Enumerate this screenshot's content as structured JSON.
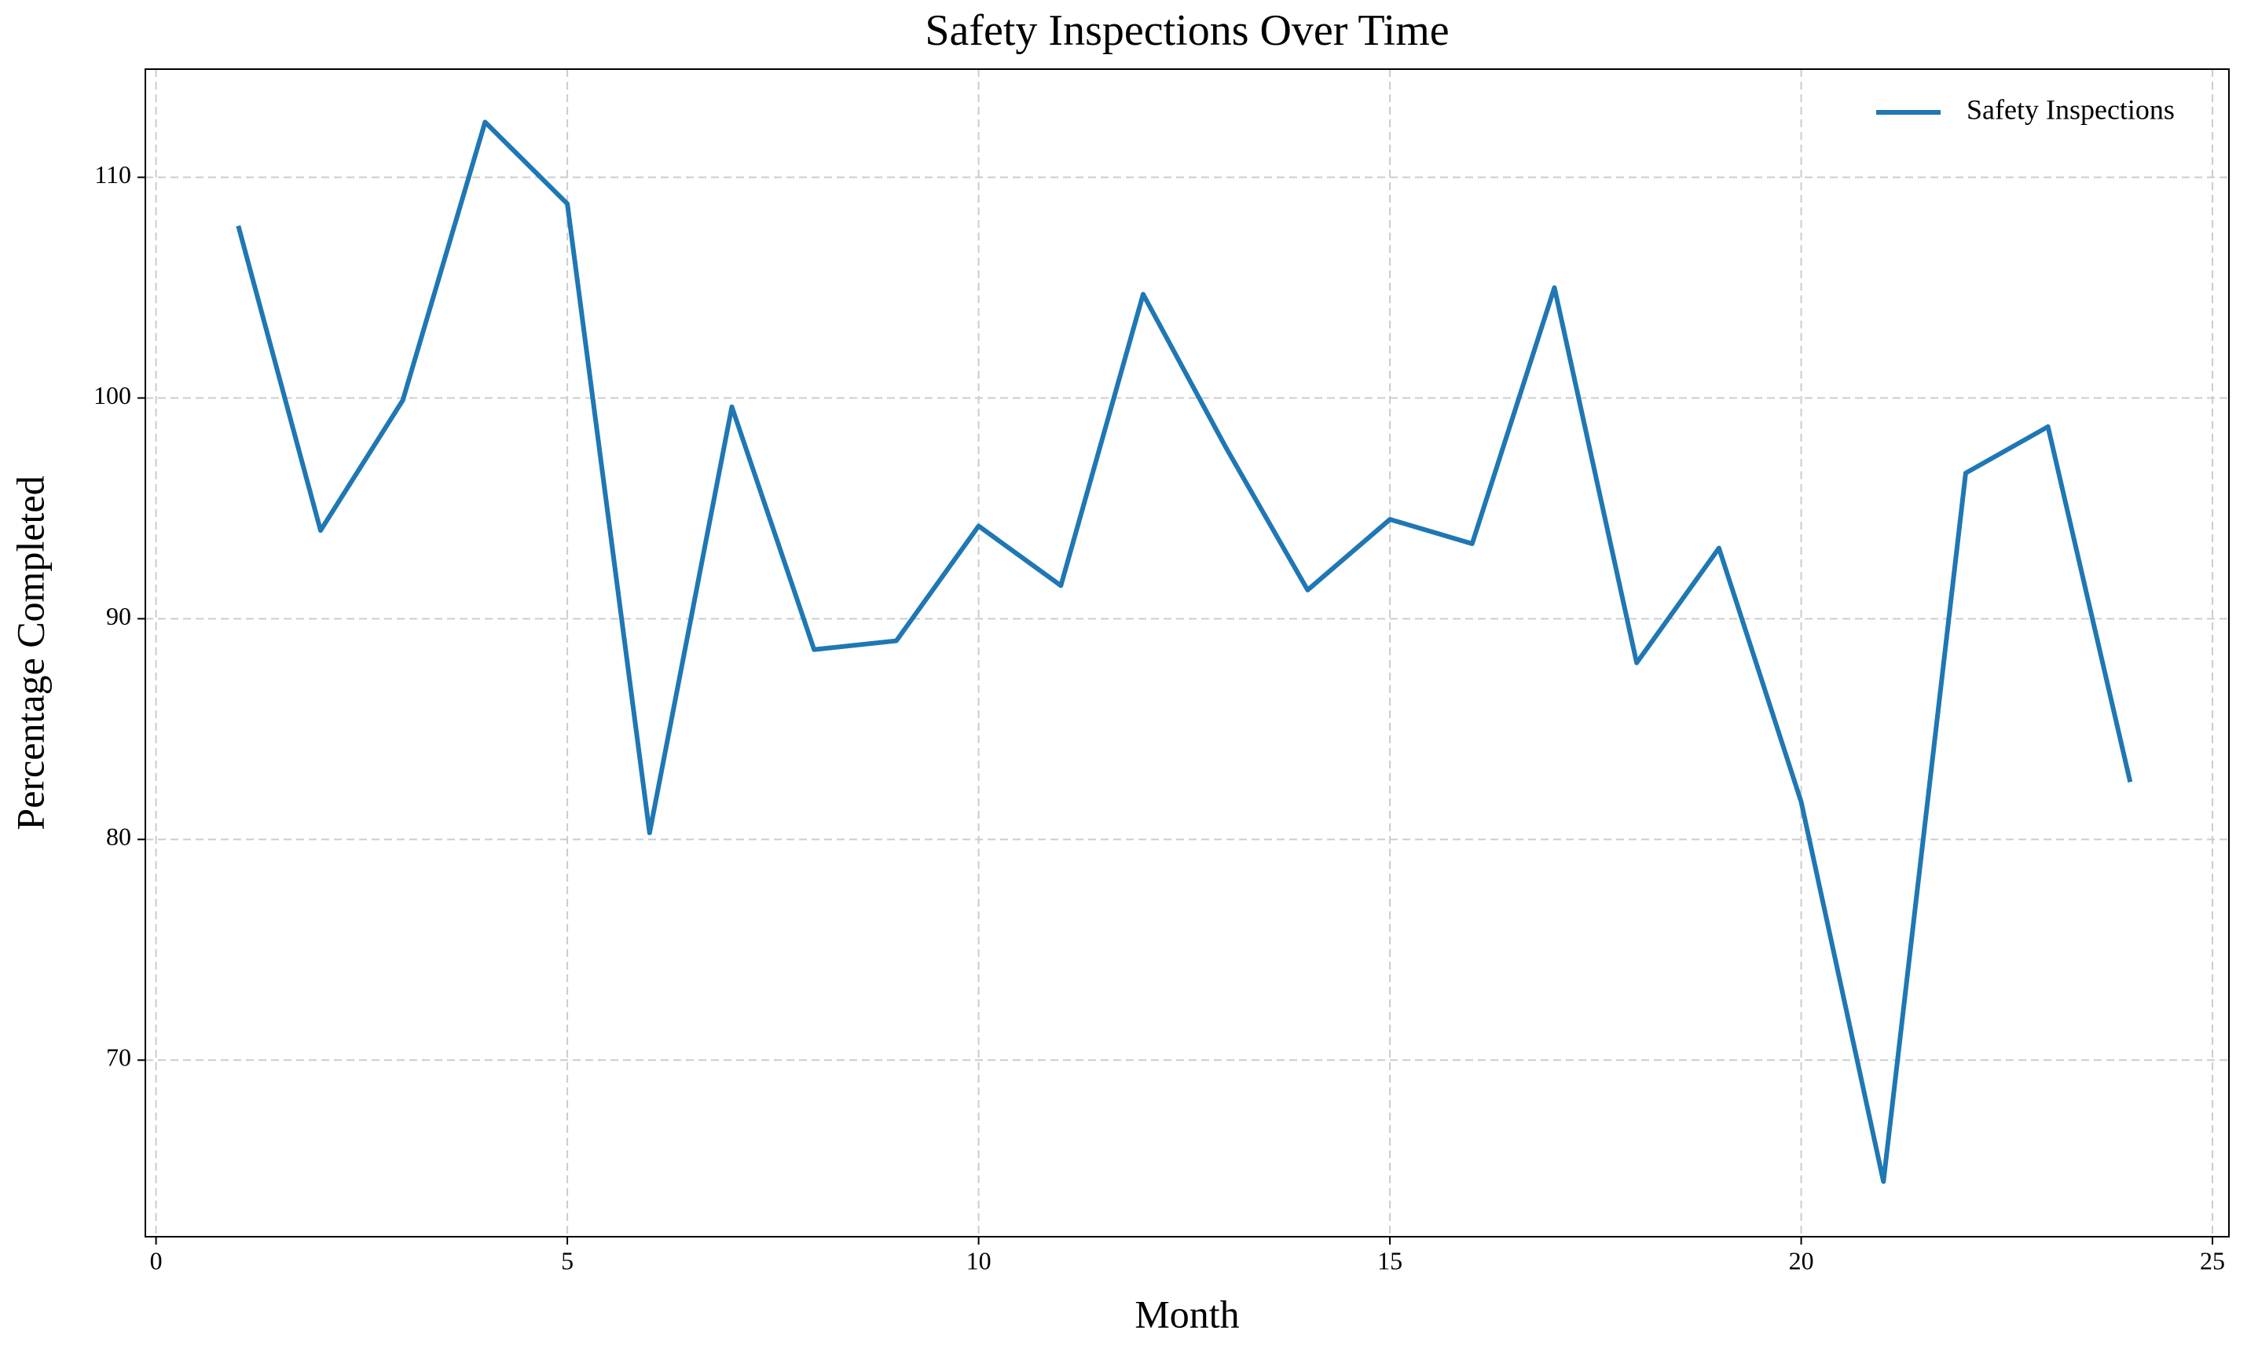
{
  "chart_data": {
    "type": "line",
    "title": "Safety Inspections Over Time",
    "xlabel": "Month",
    "ylabel": "Percentage Completed",
    "x": [
      1,
      2,
      3,
      4,
      5,
      6,
      7,
      8,
      9,
      10,
      11,
      12,
      13,
      14,
      15,
      16,
      17,
      18,
      19,
      20,
      21,
      22,
      23,
      24
    ],
    "series": [
      {
        "name": "Safety Inspections",
        "color": "#1f77b4",
        "values": [
          107.8,
          94.0,
          99.9,
          112.5,
          108.8,
          80.3,
          99.6,
          88.6,
          89.0,
          94.2,
          91.5,
          104.7,
          97.8,
          91.3,
          94.5,
          93.4,
          105.0,
          88.0,
          93.2,
          81.7,
          64.5,
          96.6,
          98.7,
          82.6
        ]
      }
    ],
    "xlim": [
      -0.13,
      25.2
    ],
    "ylim": [
      62.0,
      114.9
    ],
    "xticks": [
      0,
      5,
      10,
      15,
      20,
      25
    ],
    "yticks": [
      70,
      80,
      90,
      100,
      110
    ],
    "grid": true,
    "legend": "upper right"
  }
}
